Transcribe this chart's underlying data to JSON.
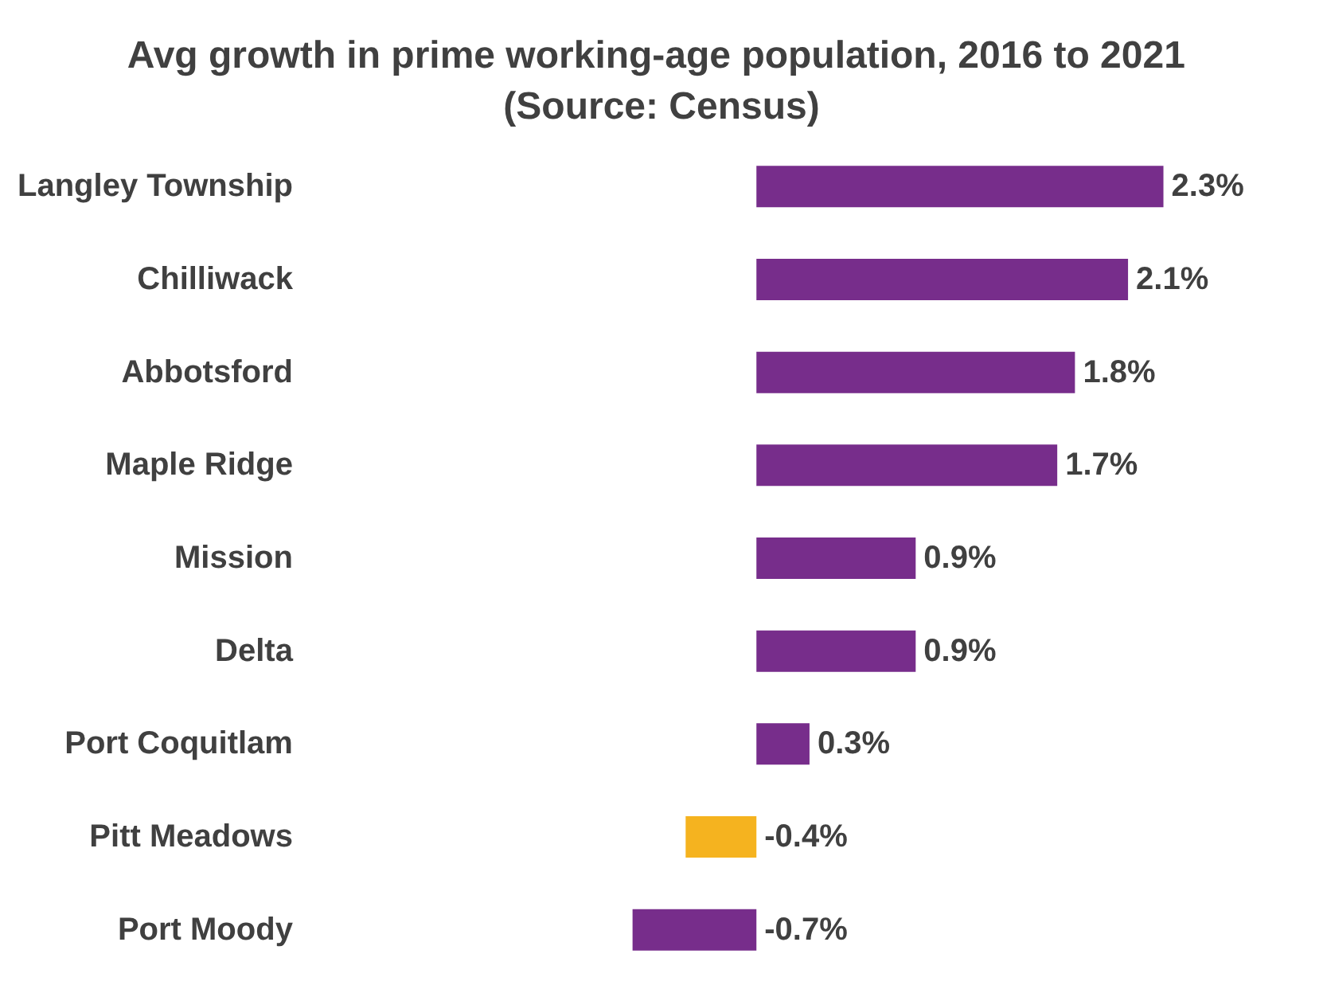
{
  "chart_data": {
    "type": "bar",
    "orientation": "horizontal",
    "title": "Avg growth in prime working-age population, 2016 to 2021 (Source: Census)",
    "categories": [
      "Langley Township",
      "Chilliwack",
      "Abbotsford",
      "Maple Ridge",
      "Mission",
      "Delta",
      "Port Coquitlam",
      "Pitt Meadows",
      "Port Moody"
    ],
    "values": [
      2.3,
      2.1,
      1.8,
      1.7,
      0.9,
      0.9,
      0.3,
      -0.4,
      -0.7
    ],
    "value_labels": [
      "2.3%",
      "2.1%",
      "1.8%",
      "1.7%",
      "0.9%",
      "0.9%",
      "0.3%",
      "-0.4%",
      "-0.7%"
    ],
    "colors": [
      "#772d8b",
      "#772d8b",
      "#772d8b",
      "#772d8b",
      "#772d8b",
      "#772d8b",
      "#772d8b",
      "#f5b31f",
      "#772d8b"
    ],
    "tick_labels": "y"
  }
}
